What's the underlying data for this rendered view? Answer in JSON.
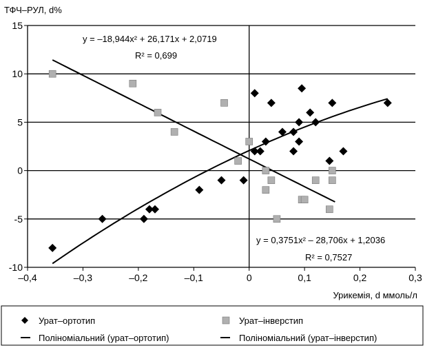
{
  "chart_data": {
    "type": "scatter",
    "ylabel": "ТФЧ–РУЛ, d%",
    "xlabel": "Урикемія, d ммоль/л",
    "xlim": [
      -0.4,
      0.3
    ],
    "ylim": [
      -10,
      15
    ],
    "x_ticks": [
      -0.4,
      -0.3,
      -0.2,
      -0.1,
      0,
      0.1,
      0.2,
      0.3
    ],
    "y_ticks": [
      -10,
      -5,
      0,
      5,
      10,
      15
    ],
    "x_tick_labels": [
      "–0,4",
      "–0,3",
      "–0,2",
      "–0,1",
      "0",
      "0,1",
      "0,2",
      "0,3"
    ],
    "y_tick_labels": [
      "-10",
      "-5",
      "0",
      "5",
      "10",
      "15"
    ],
    "grid": "horizontal",
    "legend_position": "bottom",
    "series": [
      {
        "name": "Урат–ортотип",
        "marker": "diamond",
        "color": "#000000",
        "points": [
          [
            -0.355,
            -8
          ],
          [
            -0.265,
            -5
          ],
          [
            -0.19,
            -5
          ],
          [
            -0.18,
            -4
          ],
          [
            -0.17,
            -4
          ],
          [
            -0.09,
            -2
          ],
          [
            -0.05,
            -1
          ],
          [
            -0.01,
            -1
          ],
          [
            0.01,
            8
          ],
          [
            0.01,
            2
          ],
          [
            0.02,
            2
          ],
          [
            0.03,
            3
          ],
          [
            0.04,
            7
          ],
          [
            0.06,
            4
          ],
          [
            0.08,
            4
          ],
          [
            0.08,
            2
          ],
          [
            0.09,
            5
          ],
          [
            0.09,
            3
          ],
          [
            0.095,
            8.5
          ],
          [
            0.11,
            6
          ],
          [
            0.12,
            5
          ],
          [
            0.145,
            1
          ],
          [
            0.15,
            7
          ],
          [
            0.17,
            2
          ],
          [
            0.25,
            7
          ]
        ]
      },
      {
        "name": "Урат–інверстип",
        "marker": "square",
        "color": "#b0b0b0",
        "points": [
          [
            -0.355,
            10
          ],
          [
            -0.21,
            9
          ],
          [
            -0.165,
            6
          ],
          [
            -0.135,
            4
          ],
          [
            -0.045,
            7
          ],
          [
            -0.02,
            1
          ],
          [
            0,
            3
          ],
          [
            0.03,
            0
          ],
          [
            0.03,
            -2
          ],
          [
            0.04,
            -1
          ],
          [
            0.05,
            -5
          ],
          [
            0.095,
            -3
          ],
          [
            0.1,
            -3
          ],
          [
            0.12,
            -1
          ],
          [
            0.145,
            -4
          ],
          [
            0.15,
            0
          ],
          [
            0.15,
            -1
          ]
        ]
      }
    ],
    "trendlines": [
      {
        "name": "Поліноміальний (урат–ортотип)",
        "coefficients": [
          -18.944,
          26.171,
          2.0719
        ],
        "x_range": [
          -0.355,
          0.25
        ],
        "equation": "y = –18,944x² + 26,171x + 2,0719",
        "r2": "R² = 0,699"
      },
      {
        "name": "Поліноміальний (урат–інверстип)",
        "coefficients": [
          0.3751,
          -28.706,
          1.2036
        ],
        "x_range": [
          -0.355,
          0.155
        ],
        "equation": "y = 0,3751x² – 28,706x + 1,2036",
        "r2": "R² = 0,7527"
      }
    ]
  }
}
